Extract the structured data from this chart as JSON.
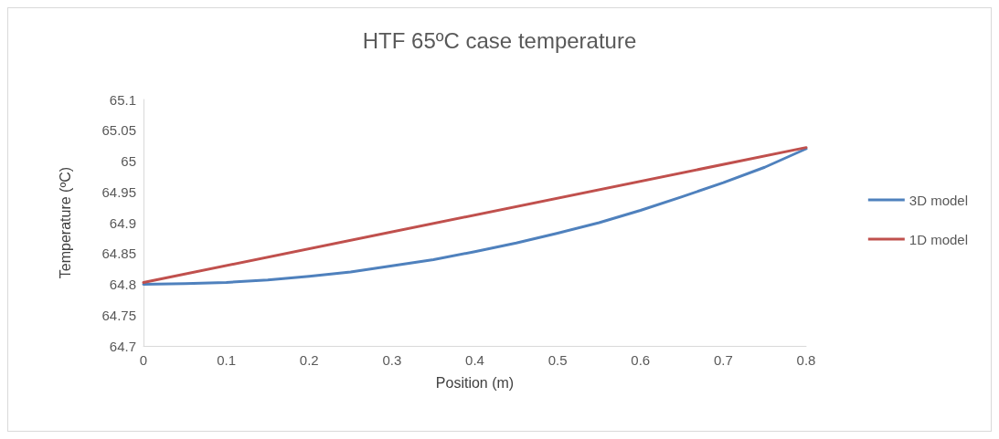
{
  "chart_data": {
    "type": "line",
    "title": "HTF 65ºC case temperature",
    "xlabel": "Position (m)",
    "ylabel": "Temperature (ºC)",
    "x": [
      0,
      0.05,
      0.1,
      0.15,
      0.2,
      0.25,
      0.3,
      0.35,
      0.4,
      0.45,
      0.5,
      0.55,
      0.6,
      0.65,
      0.7,
      0.75,
      0.8
    ],
    "series": [
      {
        "name": "3D model",
        "color": "#4f81bd",
        "values": [
          64.8,
          64.801,
          64.803,
          64.807,
          64.813,
          64.82,
          64.83,
          64.84,
          64.853,
          64.867,
          64.883,
          64.9,
          64.92,
          64.942,
          64.965,
          64.99,
          65.02
        ]
      },
      {
        "name": "1D model",
        "color": "#c0504d",
        "x": [
          0,
          0.8
        ],
        "values": [
          64.803,
          65.022
        ]
      }
    ],
    "xlim": [
      0,
      0.8
    ],
    "xticks": [
      0,
      0.1,
      0.2,
      0.3,
      0.4,
      0.5,
      0.6,
      0.7,
      0.8
    ],
    "ylim": [
      64.7,
      65.1
    ],
    "yticks": [
      64.7,
      64.75,
      64.8,
      64.85,
      64.9,
      64.95,
      65,
      65.05,
      65.1
    ],
    "grid": false,
    "legend": "right",
    "marker": "none",
    "line_style": "solid"
  }
}
